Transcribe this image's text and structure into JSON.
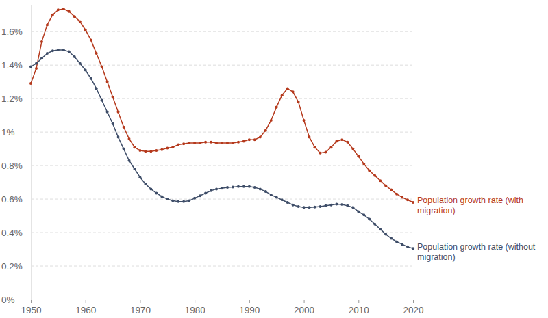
{
  "chart_data": {
    "type": "line",
    "x": [
      1950,
      1951,
      1952,
      1953,
      1954,
      1955,
      1956,
      1957,
      1958,
      1959,
      1960,
      1961,
      1962,
      1963,
      1964,
      1965,
      1966,
      1967,
      1968,
      1969,
      1970,
      1971,
      1972,
      1973,
      1974,
      1975,
      1976,
      1977,
      1978,
      1979,
      1980,
      1981,
      1982,
      1983,
      1984,
      1985,
      1986,
      1987,
      1988,
      1989,
      1990,
      1991,
      1992,
      1993,
      1994,
      1995,
      1996,
      1997,
      1998,
      1999,
      2000,
      2001,
      2002,
      2003,
      2004,
      2005,
      2006,
      2007,
      2008,
      2009,
      2010,
      2011,
      2012,
      2013,
      2014,
      2015,
      2016,
      2017,
      2018,
      2019,
      2020
    ],
    "series": [
      {
        "name": "Population growth rate (with migration)",
        "color": "#b5391c",
        "marker": "circle",
        "line_style": "solid",
        "values": [
          1.29,
          1.38,
          1.54,
          1.64,
          1.7,
          1.73,
          1.735,
          1.72,
          1.69,
          1.66,
          1.61,
          1.55,
          1.47,
          1.39,
          1.3,
          1.21,
          1.12,
          1.03,
          0.96,
          0.91,
          0.89,
          0.885,
          0.885,
          0.89,
          0.895,
          0.905,
          0.91,
          0.925,
          0.93,
          0.935,
          0.935,
          0.935,
          0.94,
          0.94,
          0.935,
          0.935,
          0.935,
          0.935,
          0.94,
          0.945,
          0.955,
          0.955,
          0.97,
          1.01,
          1.07,
          1.15,
          1.22,
          1.26,
          1.24,
          1.18,
          1.07,
          0.97,
          0.91,
          0.875,
          0.88,
          0.91,
          0.945,
          0.955,
          0.94,
          0.9,
          0.855,
          0.81,
          0.77,
          0.74,
          0.71,
          0.68,
          0.655,
          0.63,
          0.61,
          0.595,
          0.58
        ]
      },
      {
        "name": "Population growth rate (without migration)",
        "color": "#3e4d68",
        "marker": "circle",
        "line_style": "solid",
        "values": [
          1.39,
          1.41,
          1.44,
          1.47,
          1.485,
          1.49,
          1.49,
          1.48,
          1.45,
          1.41,
          1.37,
          1.32,
          1.26,
          1.19,
          1.12,
          1.05,
          0.97,
          0.9,
          0.83,
          0.78,
          0.73,
          0.69,
          0.66,
          0.635,
          0.615,
          0.6,
          0.59,
          0.585,
          0.585,
          0.59,
          0.605,
          0.62,
          0.635,
          0.65,
          0.66,
          0.665,
          0.67,
          0.672,
          0.675,
          0.675,
          0.675,
          0.67,
          0.66,
          0.645,
          0.625,
          0.61,
          0.595,
          0.58,
          0.565,
          0.555,
          0.55,
          0.55,
          0.552,
          0.555,
          0.56,
          0.565,
          0.57,
          0.568,
          0.56,
          0.55,
          0.525,
          0.505,
          0.48,
          0.45,
          0.42,
          0.39,
          0.365,
          0.345,
          0.33,
          0.315,
          0.305
        ]
      }
    ],
    "xlim": [
      1950,
      2020
    ],
    "xticks": [
      1950,
      1960,
      1970,
      1980,
      1990,
      2000,
      2010,
      2020
    ],
    "ylim": [
      0,
      1.76
    ],
    "yticks": [
      {
        "value": 0,
        "label": "0%"
      },
      {
        "value": 0.2,
        "label": "0.2%"
      },
      {
        "value": 0.4,
        "label": "0.4%"
      },
      {
        "value": 0.6,
        "label": "0.6%"
      },
      {
        "value": 0.8,
        "label": "0.8%"
      },
      {
        "value": 1,
        "label": "1%"
      },
      {
        "value": 1.2,
        "label": "1.2%"
      },
      {
        "value": 1.4,
        "label": "1.4%"
      },
      {
        "value": 1.6,
        "label": "1.6%"
      }
    ],
    "grid": true
  }
}
